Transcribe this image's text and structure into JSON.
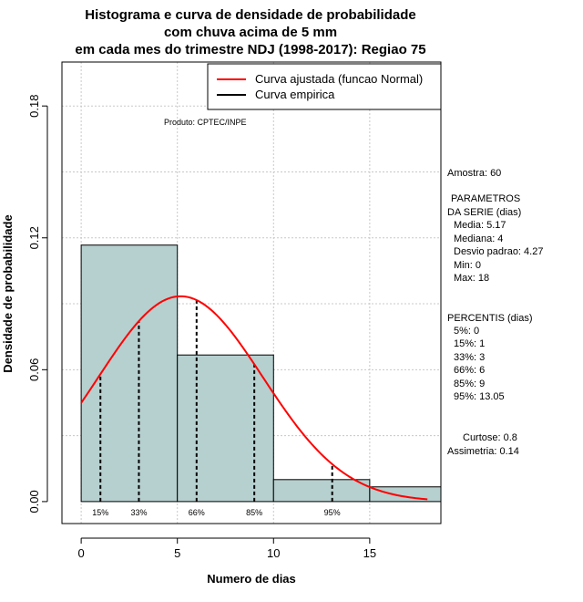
{
  "chart_data": {
    "type": "bar",
    "title_lines": [
      "Histograma e curva de densidade de probabilidade",
      "com chuva acima de 5 mm",
      "em cada mes do trimestre NDJ (1998-2017): Regiao 75"
    ],
    "xlabel": "Numero de dias",
    "ylabel": "Densidade de probabilidade",
    "xlim": [
      -1,
      18.7
    ],
    "ylim": [
      -0.01,
      0.2
    ],
    "x_ticks": [
      0,
      5,
      10,
      15
    ],
    "y_ticks": [
      0.0,
      0.06,
      0.12,
      0.18
    ],
    "y_tick_labels": [
      "0.00",
      "0.06",
      "0.12",
      "0.18"
    ],
    "histogram": {
      "bins": [
        {
          "from": 0,
          "to": 5,
          "density": 0.1167
        },
        {
          "from": 5,
          "to": 10,
          "density": 0.0667
        },
        {
          "from": 10,
          "to": 15,
          "density": 0.01
        },
        {
          "from": 15,
          "to": 18.7,
          "density": 0.0067
        }
      ],
      "color": "#b6cfcf"
    },
    "normal_curve": {
      "name": "Curva ajustada (funcao Normal)",
      "mean": 5.17,
      "sd": 4.27,
      "x_from": 0,
      "x_to": 18,
      "color": "#ff0000"
    },
    "empirical_label": "Curva empirica",
    "percentile_lines": [
      {
        "x": 1,
        "label": "15%",
        "show_label": true
      },
      {
        "x": 3,
        "label": "33%",
        "show_label": true
      },
      {
        "x": 6,
        "label": "66%",
        "show_label": true
      },
      {
        "x": 9,
        "label": "85%",
        "show_label": true
      },
      {
        "x": 13.05,
        "label": "95%",
        "show_label": true
      }
    ],
    "grid": true,
    "legend_position": "top-right",
    "product_note": "Produto: CPTEC/INPE"
  },
  "side_panel": {
    "amostra": "Amostra: 60",
    "parametros_title_1": "PARAMETROS",
    "parametros_title_2": "DA SERIE (dias)",
    "media": "Media: 5.17",
    "mediana": "Mediana: 4",
    "desvio": "Desvio padrao: 4.27",
    "min": "Min: 0",
    "max": "Max: 18",
    "percentis_title": "PERCENTIS (dias)",
    "p5": "5%: 0",
    "p15": "15%: 1",
    "p33": "33%: 3",
    "p66": "66%: 6",
    "p85": "85%: 9",
    "p95": "95%: 13.05",
    "curtose": "Curtose: 0.8",
    "assimetria": "Assimetria: 0.14"
  }
}
